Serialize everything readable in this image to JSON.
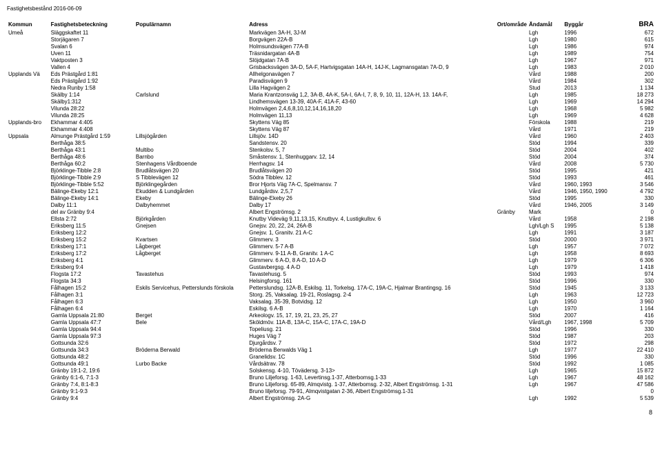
{
  "header": "Fastighetsbestånd 2016-06-09",
  "columns": [
    "Kommun",
    "Fastighetsbeteckning",
    "Populärnamn",
    "Adress",
    "Ort/område",
    "Ändamål",
    "Byggår",
    "BRA"
  ],
  "pageNumber": "8",
  "rows": [
    {
      "kommun": "Umeå",
      "fast": "Släggskaftet 11",
      "pop": "",
      "adr": "Markvägen 3A-H, 3J-M",
      "ort": "",
      "and": "Lgh",
      "byg": "1996",
      "bra": "672"
    },
    {
      "kommun": "",
      "fast": "Storjägaren 7",
      "pop": "",
      "adr": "Borgvägen 22A-B",
      "ort": "",
      "and": "Lgh",
      "byg": "1980",
      "bra": "615"
    },
    {
      "kommun": "",
      "fast": "Svalan 6",
      "pop": "",
      "adr": "Holmsundsvägen 77A-B",
      "ort": "",
      "and": "Lgh",
      "byg": "1986",
      "bra": "974"
    },
    {
      "kommun": "",
      "fast": "Uven 11",
      "pop": "",
      "adr": "Träsnidargatan 4A-B",
      "ort": "",
      "and": "Lgh",
      "byg": "1989",
      "bra": "754"
    },
    {
      "kommun": "",
      "fast": "Vaktposten 3",
      "pop": "",
      "adr": "Slöjdgatan 7A-B",
      "ort": "",
      "and": "Lgh",
      "byg": "1967",
      "bra": "971"
    },
    {
      "kommun": "",
      "fast": "Vallen 4",
      "pop": "",
      "adr": "Grisbacksvägen 3A-D, 5A-F, Hartvigsgatan 14A-H, 14J-K, Lagmansgatan 7A-D, 9",
      "ort": "",
      "and": "Lgh",
      "byg": "1983",
      "bra": "2 010"
    },
    {
      "kommun": "Upplands Vä",
      "fast": "Eds Prästgård 1:81",
      "pop": "",
      "adr": "Allhelgonavägen 7",
      "ort": "",
      "and": "Vård",
      "byg": "1988",
      "bra": "200"
    },
    {
      "kommun": "",
      "fast": "Eds Prästgård 1:92",
      "pop": "",
      "adr": "Paradisvägen 9",
      "ort": "",
      "and": "Vård",
      "byg": "1984",
      "bra": "302"
    },
    {
      "kommun": "",
      "fast": "Nedra Runby 1:58",
      "pop": "",
      "adr": "Lilla Hagvägen 2",
      "ort": "",
      "and": "Stud",
      "byg": "2013",
      "bra": "1 134"
    },
    {
      "kommun": "",
      "fast": "Skälby 1:14",
      "pop": "Carlslund",
      "adr": "Maria Krantzonsväg 1,2, 3A-B, 4A-K, 5A-I, 6A-I, 7, 8, 9, 10, 11, 12A-H, 13. 14A-F,",
      "ort": "",
      "and": "Lgh",
      "byg": "1985",
      "bra": "18 273"
    },
    {
      "kommun": "",
      "fast": "Skälby1:312",
      "pop": "",
      "adr": "Lindhemsvägen 13-39, 40A-F, 41A-F, 43-60",
      "ort": "",
      "and": "Lgh",
      "byg": "1969",
      "bra": "14 294"
    },
    {
      "kommun": "",
      "fast": "Vilunda 28:22",
      "pop": "",
      "adr": "Holmvägen 2,4,6,8,10,12,14,16,18,20",
      "ort": "",
      "and": "Lgh",
      "byg": "1968",
      "bra": "5 982"
    },
    {
      "kommun": "",
      "fast": "Vilunda 28:25",
      "pop": "",
      "adr": "Holmvägen 11,13",
      "ort": "",
      "and": "Lgh",
      "byg": "1969",
      "bra": "4 628"
    },
    {
      "kommun": "Upplands-bro",
      "fast": "Ekhammar 4:405",
      "pop": "",
      "adr": "Skyttens Väg 85",
      "ort": "",
      "and": "Förskola",
      "byg": "1988",
      "bra": "219"
    },
    {
      "kommun": "",
      "fast": "Ekhammar 4:408",
      "pop": "",
      "adr": "Skyttens Väg 87",
      "ort": "",
      "and": "Vård",
      "byg": "1971",
      "bra": "219"
    },
    {
      "kommun": "Uppsala",
      "fast": "Almunge Prästgård 1:59",
      "pop": "Lillsjögården",
      "adr": "Lillsjöv. 14D",
      "ort": "",
      "and": "Vård",
      "byg": "1960",
      "bra": "2 403"
    },
    {
      "kommun": "",
      "fast": "Berthåga 38:5",
      "pop": "",
      "adr": "Sandstensv. 20",
      "ort": "",
      "and": "Stöd",
      "byg": "1994",
      "bra": "339"
    },
    {
      "kommun": "",
      "fast": "Berthåga 43:1",
      "pop": "Multibo",
      "adr": "Stenkolsv. 5, 7",
      "ort": "",
      "and": "Stöd",
      "byg": "2004",
      "bra": "402"
    },
    {
      "kommun": "",
      "fast": "Berthåga 48:6",
      "pop": "Barnbo",
      "adr": "Småstensv. 1, Stenhuggarv. 12, 14",
      "ort": "",
      "and": "Stöd",
      "byg": "2004",
      "bra": "374"
    },
    {
      "kommun": "",
      "fast": "Berthåga 60:2",
      "pop": "Stenhagens Vårdboende",
      "adr": "Herrhagsv. 14",
      "ort": "",
      "and": "Vård",
      "byg": "2008",
      "bra": "5 730"
    },
    {
      "kommun": "",
      "fast": "Björklinge-Tibble 2:8",
      "pop": "Brudlåtsvägen 20",
      "adr": "Brudlåtsvägen 20",
      "ort": "",
      "and": "Stöd",
      "byg": "1995",
      "bra": "421"
    },
    {
      "kommun": "",
      "fast": "Björklinge-Tibble 2:9",
      "pop": "S Tibblevägen 12",
      "adr": "Södra Tibblev. 12",
      "ort": "",
      "and": "Stöd",
      "byg": "1993",
      "bra": "461"
    },
    {
      "kommun": "",
      "fast": "Björklinge-Tibble 5:52",
      "pop": "Björklingegården",
      "adr": "Bror Hjorts Väg 7A-C, Spelmansv. 7",
      "ort": "",
      "and": "Vård",
      "byg": "1960, 1993",
      "bra": "3 546"
    },
    {
      "kommun": "",
      "fast": "Bälinge-Ekeby 12:1",
      "pop": "Ekudden & Lundgården",
      "adr": "Lundgårdsv. 2,5,7",
      "ort": "",
      "and": "Vård",
      "byg": "1946, 1950, 1990",
      "bra": "4 792"
    },
    {
      "kommun": "",
      "fast": "Bälinge-Ekeby 14:1",
      "pop": "Ekeby",
      "adr": "Bälinge-Ekeby 26",
      "ort": "",
      "and": "Stöd",
      "byg": "1995",
      "bra": "330"
    },
    {
      "kommun": "",
      "fast": "Dalby 11:1",
      "pop": "Dalbyhemmet",
      "adr": "Dalby 17",
      "ort": "",
      "and": "Vård",
      "byg": "1946, 2005",
      "bra": "3 149"
    },
    {
      "kommun": "",
      "fast": "del av Gränby 9:4",
      "pop": "",
      "adr": "Albert Engströmsg. 2",
      "ort": "Gränby",
      "and": "Mark",
      "byg": "",
      "bra": "0"
    },
    {
      "kommun": "",
      "fast": "Ellsta 2:72",
      "pop": "Björkgården",
      "adr": "Knutby Videväg 9,11,13,15, Knutbyv. 4, Lustigkullsv. 6",
      "ort": "",
      "and": "Vård",
      "byg": "1958",
      "bra": "2 198"
    },
    {
      "kommun": "",
      "fast": "Eriksberg 11:5",
      "pop": "Gnejsen",
      "adr": "Gnejsv. 20, 22, 24, 26A-B",
      "ort": "",
      "and": "Lgh/Lgh S",
      "byg": "1995",
      "bra": "5 138"
    },
    {
      "kommun": "",
      "fast": "Eriksberg 12:2",
      "pop": "",
      "adr": "Gnejsv. 1, Granitv. 21 A-C",
      "ort": "",
      "and": "Lgh",
      "byg": "1991",
      "bra": "3 187"
    },
    {
      "kommun": "",
      "fast": "Eriksberg 15:2",
      "pop": "Kvartsen",
      "adr": "Glimmerv. 3",
      "ort": "",
      "and": "Stöd",
      "byg": "2000",
      "bra": "3 971"
    },
    {
      "kommun": "",
      "fast": "Eriksberg 17:1",
      "pop": "Lågberget",
      "adr": "Glimmerv. 5-7 A-B",
      "ort": "",
      "and": "Lgh",
      "byg": "1957",
      "bra": "7 072"
    },
    {
      "kommun": "",
      "fast": "Eriksberg 17:2",
      "pop": "Lågberget",
      "adr": "Glimmerv. 9-11 A-B, Granitv. 1 A-C",
      "ort": "",
      "and": "Lgh",
      "byg": "1958",
      "bra": "8 693"
    },
    {
      "kommun": "",
      "fast": "Eriksberg 4:1",
      "pop": "",
      "adr": "Glimmerv. 6 A-D, 8 A-D, 10 A-D",
      "ort": "",
      "and": "Lgh",
      "byg": "1979",
      "bra": "6 306"
    },
    {
      "kommun": "",
      "fast": "Eriksberg 9:4",
      "pop": "",
      "adr": "Gustavbergsg. 4 A-D",
      "ort": "",
      "and": "Lgh",
      "byg": "1979",
      "bra": "1 418"
    },
    {
      "kommun": "",
      "fast": "Flogsta 17:2",
      "pop": "Tavastehus",
      "adr": "Tavastehusg. 5",
      "ort": "",
      "and": "Stöd",
      "byg": "1993",
      "bra": "974"
    },
    {
      "kommun": "",
      "fast": "Flogsta 34:3",
      "pop": "",
      "adr": "Helsingforsg. 161",
      "ort": "",
      "and": "Stöd",
      "byg": "1996",
      "bra": "330"
    },
    {
      "kommun": "",
      "fast": "Fålhagen 15:2",
      "pop": "Eskils Servicehus, Petterslunds förskola",
      "adr": "Petterslundsg. 12A-B, Eskilsg. 11, Torkelsg. 17A-C, 19A-C, Hjalmar Brantingsg. 16",
      "ort": "",
      "and": "Stöd",
      "byg": "1945",
      "bra": "3 133"
    },
    {
      "kommun": "",
      "fast": "Fålhagen 3:1",
      "pop": "",
      "adr": "Storg. 25, Vaksalag. 19-21, Roslagsg. 2-4",
      "ort": "",
      "and": "Lgh",
      "byg": "1963",
      "bra": "12 723"
    },
    {
      "kommun": "",
      "fast": "Fålhagen 6:3",
      "pop": "",
      "adr": "Vaksalag. 35-39, Botvidsg. 12",
      "ort": "",
      "and": "Lgh",
      "byg": "1950",
      "bra": "3 960"
    },
    {
      "kommun": "",
      "fast": "Fålhagen 6:4",
      "pop": "",
      "adr": "Eskilsg. 6 A-B",
      "ort": "",
      "and": "Lgh",
      "byg": "1970",
      "bra": "1 164"
    },
    {
      "kommun": "",
      "fast": "Gamla Uppsala 21:80",
      "pop": "Berget",
      "adr": "Arkeologv. 15, 17, 19, 21, 23, 25, 27",
      "ort": "",
      "and": "Stöd",
      "byg": "2007",
      "bra": "416"
    },
    {
      "kommun": "",
      "fast": "Gamla Uppsala 47:7",
      "pop": "Bele",
      "adr": "Sköldmöv. 11A-B, 13A-C, 15A-C, 17A-C, 19A-D",
      "ort": "",
      "and": "Vård/Lgh",
      "byg": "1967, 1998",
      "bra": "5 709"
    },
    {
      "kommun": "",
      "fast": "Gamla Uppsala 94:4",
      "pop": "",
      "adr": "Topeliusg. 21",
      "ort": "",
      "and": "Stöd",
      "byg": "1996",
      "bra": "330"
    },
    {
      "kommun": "",
      "fast": "Gamla Uppsala 97:3",
      "pop": "",
      "adr": "Huges Väg 7",
      "ort": "",
      "and": "Stöd",
      "byg": "1987",
      "bra": "203"
    },
    {
      "kommun": "",
      "fast": "Gottsunda 32:6",
      "pop": "",
      "adr": "Djurgårdsv. 7",
      "ort": "",
      "and": "Stöd",
      "byg": "1972",
      "bra": "298"
    },
    {
      "kommun": "",
      "fast": "Gottsunda 34:3",
      "pop": "Bröderna Berwald",
      "adr": "Bröderna Berwalds Väg 1",
      "ort": "",
      "and": "Lgh",
      "byg": "1977",
      "bra": "22 410"
    },
    {
      "kommun": "",
      "fast": "Gottsunda 48:2",
      "pop": "",
      "adr": "Granelidsv. 1C",
      "ort": "",
      "and": "Stöd",
      "byg": "1996",
      "bra": "330"
    },
    {
      "kommun": "",
      "fast": "Gottsunda 49:1",
      "pop": "Lurbo Backe",
      "adr": "Vårdsätrav. 78",
      "ort": "",
      "and": "Stöd",
      "byg": "1992",
      "bra": "1 085"
    },
    {
      "kommun": "",
      "fast": "Gränby 19:1-2, 19:6",
      "pop": "",
      "adr": "Solskensg. 4-10, Tövädersg. 3-13>",
      "ort": "",
      "and": "Lgh",
      "byg": "1965",
      "bra": "15 872"
    },
    {
      "kommun": "",
      "fast": "Gränby 6:1-6, 7:1-3",
      "pop": "",
      "adr": "Bruno Liljeforsg. 1-63, Levertinsg.1-37, Atterbomsg.1-33",
      "ort": "",
      "and": "Lgh",
      "byg": "1967",
      "bra": "48 162"
    },
    {
      "kommun": "",
      "fast": "Gränby 7:4, 8:1-8:3",
      "pop": "",
      "adr": "Bruno Liljeforsg. 65-89, Almqvistg. 1-37, Atterbomsg. 2-32, Albert Engströmsg. 1-31",
      "ort": "",
      "and": "Lgh",
      "byg": "1967",
      "bra": "47 586"
    },
    {
      "kommun": "",
      "fast": "Gränby 9:1-9:3",
      "pop": "",
      "adr": "Bruno liljeforsg. 79-91, Almqvistgatan 2-36, Albert Engströmsg.1-31",
      "ort": "",
      "and": "",
      "byg": "",
      "bra": "0"
    },
    {
      "kommun": "",
      "fast": "Gränby 9:4",
      "pop": "",
      "adr": "Albert Engströmsg. 2A-G",
      "ort": "",
      "and": "Lgh",
      "byg": "1992",
      "bra": "5 539"
    }
  ]
}
